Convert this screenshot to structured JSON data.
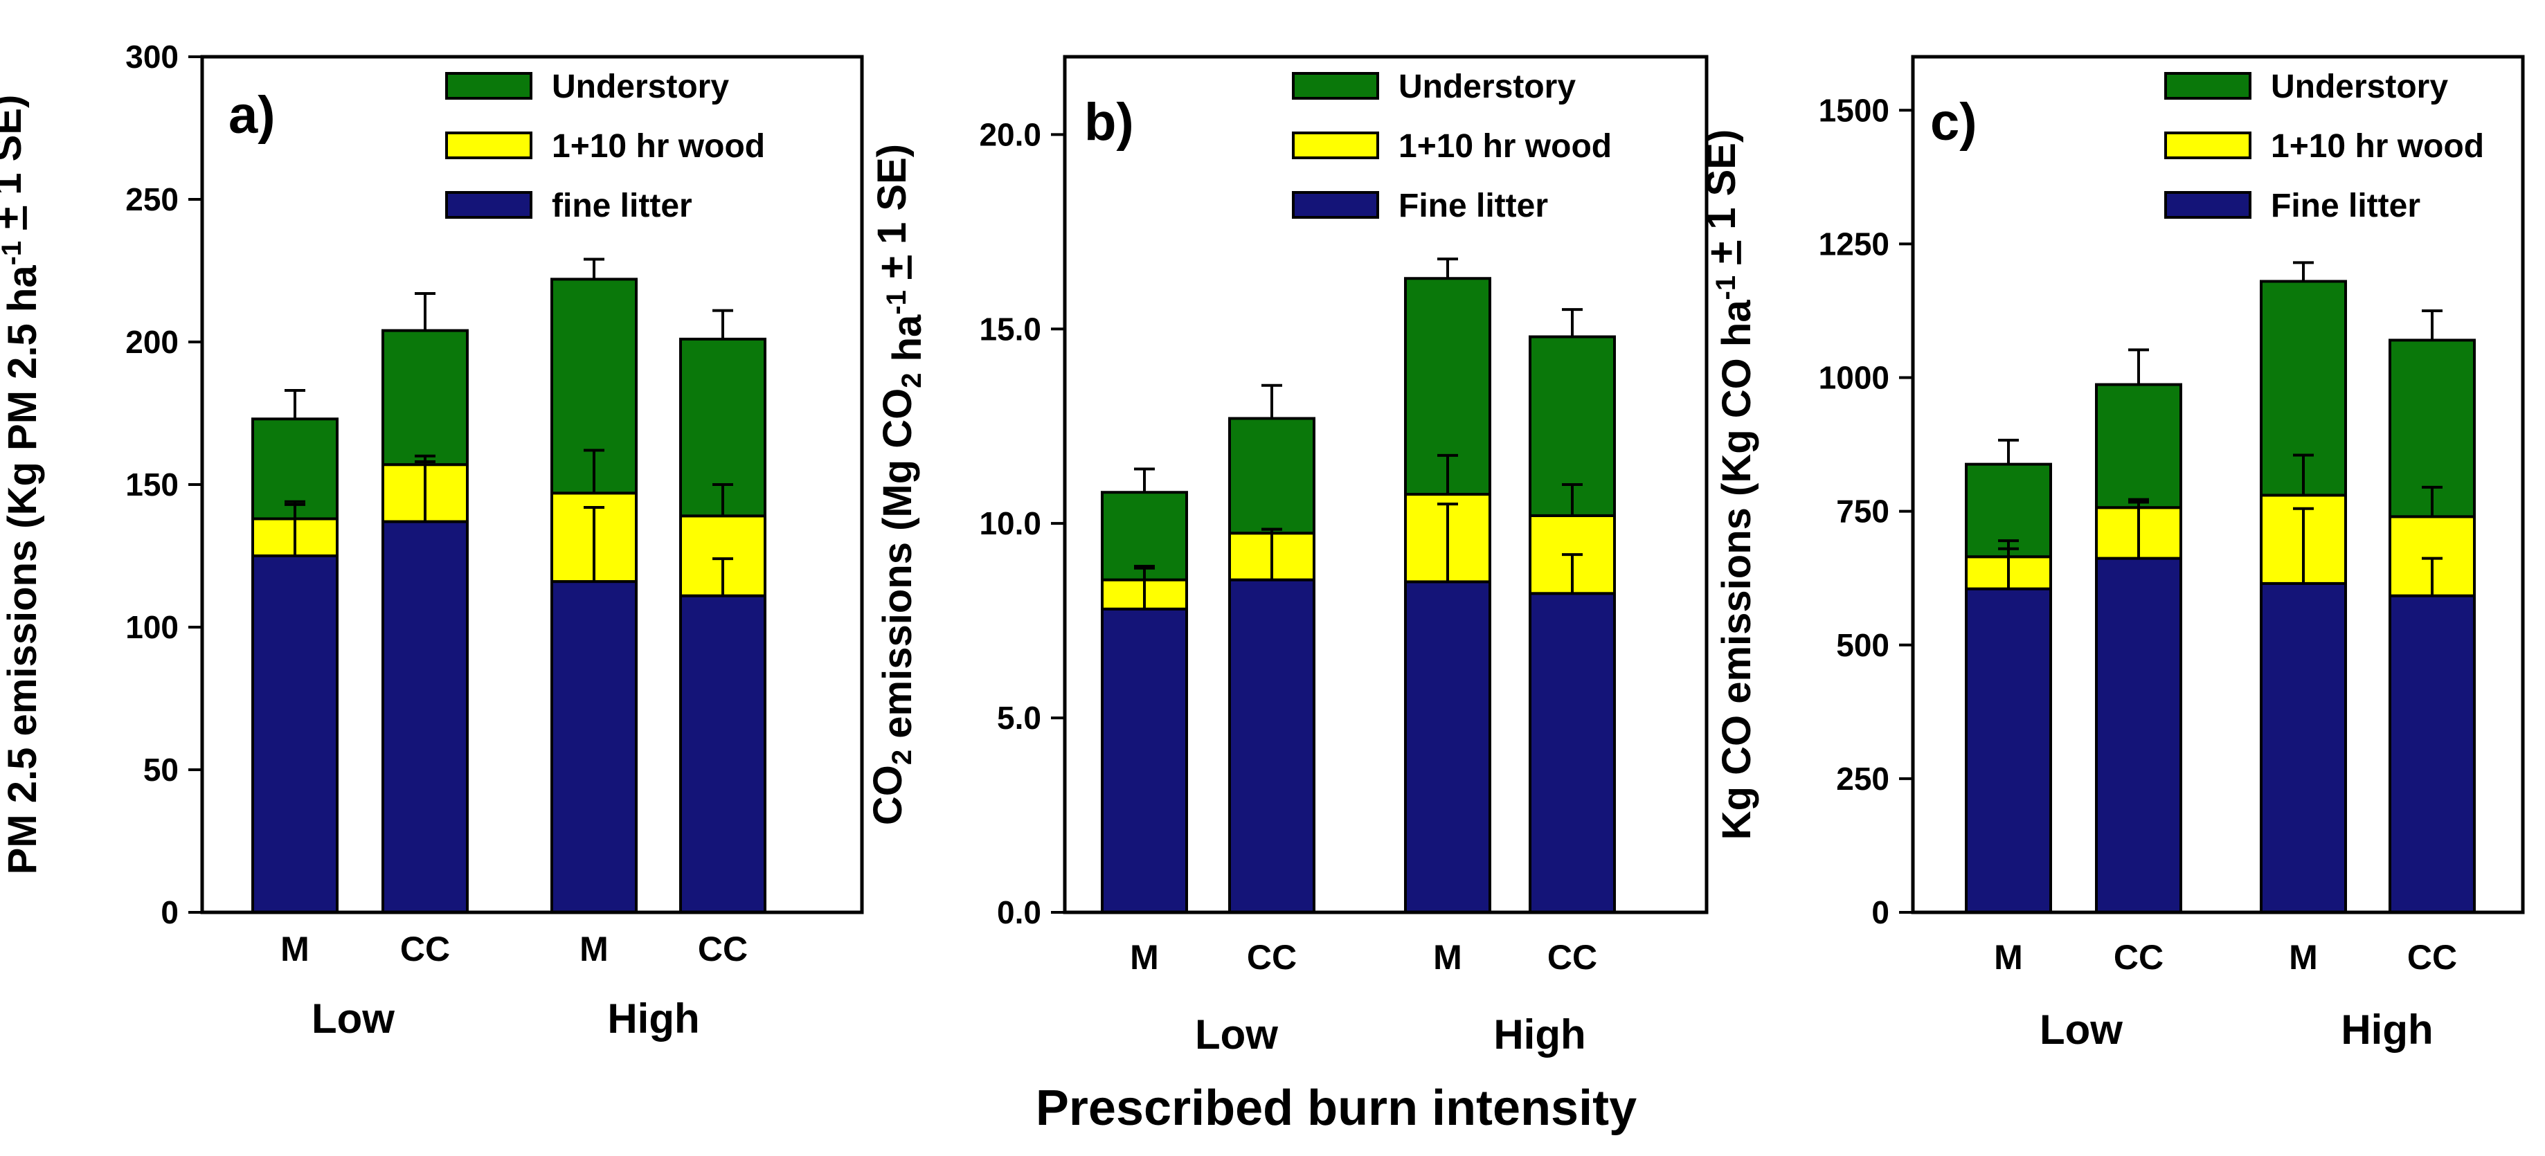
{
  "figure": {
    "x_title": "Prescribed burn intensity"
  },
  "chart_data": [
    {
      "type": "bar",
      "stacked": true,
      "panel_label": "a)",
      "ylabel": [
        "PM 2.5 emissions (Kg PM 2.5 ha",
        "-1",
        " ",
        "+",
        " 1 SE)"
      ],
      "ylim": [
        0,
        300
      ],
      "yticks": [
        0,
        50,
        100,
        150,
        200,
        250,
        300
      ],
      "ytick_labels": [
        "0",
        "50",
        "100",
        "150",
        "200",
        "250",
        "300"
      ],
      "categories": [
        "M",
        "CC",
        "M",
        "CC"
      ],
      "groups": [
        "Low",
        "High"
      ],
      "colors": {
        "fine": "#141478",
        "wood": "#ffff00",
        "under": "#0a780a"
      },
      "legend": [
        "Understory",
        "1+10 hr wood",
        "fine litter"
      ],
      "series": [
        {
          "name": "fine litter",
          "values": [
            125,
            137,
            116,
            111
          ],
          "errors": [
            18,
            21,
            26,
            13
          ]
        },
        {
          "name": "1+10 hr wood",
          "values": [
            13,
            20,
            31,
            28
          ],
          "errors": [
            6,
            3,
            15,
            11
          ]
        },
        {
          "name": "Understory",
          "values": [
            35,
            47,
            75,
            62
          ],
          "errors": [
            10,
            13,
            7,
            10
          ]
        }
      ]
    },
    {
      "type": "bar",
      "stacked": true,
      "panel_label": "b)",
      "ylabel": [
        "CO",
        "2",
        " emissions (Mg CO",
        "2",
        " ha",
        "-1",
        " ",
        "+",
        " 1 SE)"
      ],
      "ylim": [
        0,
        22
      ],
      "yticks": [
        0,
        5,
        10,
        15,
        20
      ],
      "ytick_labels": [
        "0.0",
        "5.0",
        "10.0",
        "15.0",
        "20.0"
      ],
      "categories": [
        "M",
        "CC",
        "M",
        "CC"
      ],
      "groups": [
        "Low",
        "High"
      ],
      "colors": {
        "fine": "#141478",
        "wood": "#ffff00",
        "under": "#0a780a"
      },
      "legend": [
        "Understory",
        "1+10 hr wood",
        "Fine litter"
      ],
      "series": [
        {
          "name": "Fine litter",
          "values": [
            7.8,
            8.55,
            8.5,
            8.2
          ],
          "errors": [
            1.1,
            1.3,
            2.0,
            1.0
          ]
        },
        {
          "name": "1+10 hr wood",
          "values": [
            0.75,
            1.2,
            2.25,
            2.0
          ],
          "errors": [
            0.3,
            0.1,
            1.0,
            0.8
          ]
        },
        {
          "name": "Understory",
          "values": [
            2.25,
            2.95,
            5.55,
            4.6
          ],
          "errors": [
            0.6,
            0.85,
            0.5,
            0.7
          ]
        }
      ]
    },
    {
      "type": "bar",
      "stacked": true,
      "panel_label": "c)",
      "ylabel": [
        "Kg CO emissions (Kg CO ha",
        "-1",
        " ",
        "+",
        " 1 SE)"
      ],
      "ylim": [
        0,
        1600
      ],
      "yticks": [
        0,
        250,
        500,
        750,
        1000,
        1250,
        1500
      ],
      "ytick_labels": [
        "0",
        "250",
        "500",
        "750",
        "1000",
        "1250",
        "1500"
      ],
      "categories": [
        "M",
        "CC",
        "M",
        "CC"
      ],
      "groups": [
        "Low",
        "High"
      ],
      "colors": {
        "fine": "#141478",
        "wood": "#ffff00",
        "under": "#0a780a"
      },
      "legend": [
        "Understory",
        "1+10 hr wood",
        "Fine litter"
      ],
      "series": [
        {
          "name": "Fine litter",
          "values": [
            605,
            662,
            615,
            592
          ],
          "errors": [
            75,
            105,
            140,
            70
          ]
        },
        {
          "name": "1+10 hr wood",
          "values": [
            60,
            95,
            165,
            148
          ],
          "errors": [
            30,
            15,
            75,
            55
          ]
        },
        {
          "name": "Understory",
          "values": [
            173,
            230,
            400,
            330
          ],
          "errors": [
            45,
            65,
            35,
            55
          ]
        }
      ]
    }
  ]
}
